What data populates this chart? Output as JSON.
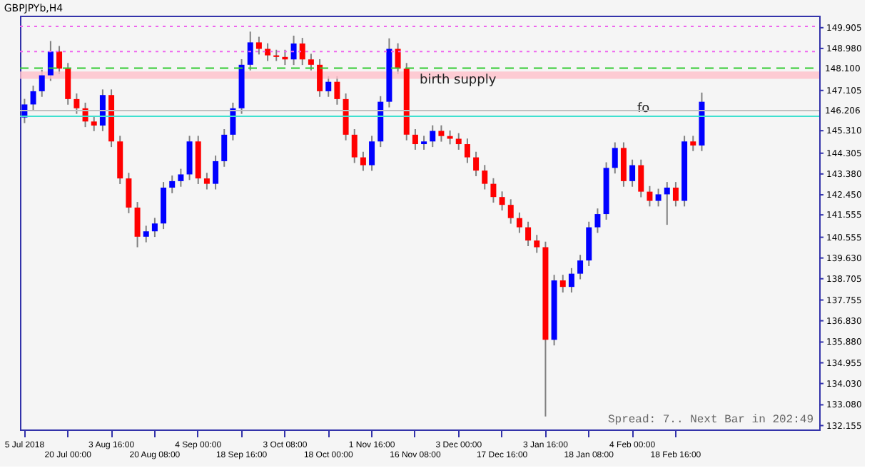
{
  "chart_data": {
    "type": "candlestick",
    "title": "GBPJPYb,H4",
    "categories": [
      "5 Jul 2018",
      null,
      null,
      null,
      null,
      "20 Jul 00:00",
      null,
      null,
      null,
      null,
      "3 Aug 16:00",
      null,
      null,
      null,
      null,
      "20 Aug 08:00",
      null,
      null,
      null,
      null,
      "4 Sep 00:00",
      null,
      null,
      null,
      null,
      "18 Sep 16:00",
      null,
      null,
      null,
      null,
      "3 Oct 08:00",
      null,
      null,
      null,
      null,
      "18 Oct 00:00",
      null,
      null,
      null,
      null,
      "1 Nov 16:00",
      null,
      null,
      null,
      null,
      "16 Nov 08:00",
      null,
      null,
      null,
      null,
      "3 Dec 00:00",
      null,
      null,
      null,
      null,
      "17 Dec 16:00",
      null,
      null,
      null,
      null,
      "3 Jan 16:00",
      null,
      null,
      null,
      null,
      "18 Jan 08:00",
      null,
      null,
      null,
      null,
      "4 Feb 00:00",
      null,
      null,
      null,
      null,
      "18 Feb 16:00",
      null,
      null,
      null,
      null,
      null,
      null,
      null,
      null,
      null,
      null,
      null,
      null,
      null,
      null,
      null,
      null
    ],
    "ohlc": [
      [
        145.9,
        146.73,
        145.65,
        146.48
      ],
      [
        146.48,
        147.32,
        146.23,
        147.07
      ],
      [
        147.07,
        148.03,
        146.82,
        147.78
      ],
      [
        147.78,
        149.31,
        147.53,
        148.84
      ],
      [
        148.84,
        149.09,
        147.83,
        148.08
      ],
      [
        148.08,
        148.33,
        146.47,
        146.72
      ],
      [
        146.72,
        146.97,
        146.06,
        146.31
      ],
      [
        146.31,
        146.56,
        145.47,
        145.72
      ],
      [
        145.72,
        145.97,
        145.29,
        145.54
      ],
      [
        145.54,
        147.15,
        145.29,
        146.9
      ],
      [
        146.9,
        147.15,
        144.58,
        144.83
      ],
      [
        144.83,
        145.08,
        142.93,
        143.18
      ],
      [
        143.18,
        143.43,
        141.63,
        141.88
      ],
      [
        141.88,
        142.13,
        140.11,
        140.58
      ],
      [
        140.58,
        141.07,
        140.33,
        140.82
      ],
      [
        140.82,
        141.42,
        140.57,
        141.17
      ],
      [
        141.17,
        143.02,
        140.92,
        142.77
      ],
      [
        142.77,
        143.31,
        142.52,
        143.06
      ],
      [
        143.06,
        143.61,
        142.81,
        143.36
      ],
      [
        143.36,
        145.08,
        143.11,
        144.83
      ],
      [
        144.83,
        145.08,
        142.93,
        143.18
      ],
      [
        143.18,
        143.43,
        142.69,
        142.94
      ],
      [
        142.94,
        144.2,
        142.69,
        143.95
      ],
      [
        143.95,
        145.38,
        143.7,
        145.13
      ],
      [
        145.13,
        146.56,
        144.88,
        146.31
      ],
      [
        146.31,
        148.5,
        146.06,
        148.25
      ],
      [
        148.25,
        149.73,
        148.0,
        149.25
      ],
      [
        149.25,
        149.5,
        148.71,
        148.96
      ],
      [
        148.96,
        149.21,
        148.42,
        148.67
      ],
      [
        148.67,
        148.92,
        148.42,
        148.6
      ],
      [
        148.6,
        148.92,
        148.24,
        148.49
      ],
      [
        148.49,
        149.55,
        148.24,
        149.2
      ],
      [
        149.2,
        149.45,
        148.24,
        148.49
      ],
      [
        148.49,
        148.74,
        148.0,
        148.25
      ],
      [
        148.25,
        148.5,
        146.82,
        147.07
      ],
      [
        147.07,
        147.74,
        146.82,
        147.49
      ],
      [
        147.49,
        147.74,
        146.47,
        146.72
      ],
      [
        146.72,
        146.97,
        144.88,
        145.13
      ],
      [
        145.13,
        145.38,
        143.87,
        144.12
      ],
      [
        144.12,
        144.37,
        143.52,
        143.77
      ],
      [
        143.77,
        145.08,
        143.52,
        144.83
      ],
      [
        144.83,
        146.85,
        144.58,
        146.6
      ],
      [
        146.6,
        149.43,
        146.35,
        148.96
      ],
      [
        148.96,
        149.21,
        147.83,
        148.08
      ],
      [
        148.08,
        148.33,
        144.88,
        145.13
      ],
      [
        145.13,
        145.38,
        144.46,
        144.71
      ],
      [
        144.71,
        145.08,
        144.46,
        144.83
      ],
      [
        144.83,
        145.55,
        144.58,
        145.3
      ],
      [
        145.3,
        145.55,
        144.82,
        145.07
      ],
      [
        145.07,
        145.32,
        144.7,
        144.95
      ],
      [
        144.95,
        145.2,
        144.46,
        144.71
      ],
      [
        144.71,
        144.96,
        143.87,
        144.12
      ],
      [
        144.12,
        144.37,
        143.28,
        143.53
      ],
      [
        143.53,
        143.78,
        142.69,
        142.94
      ],
      [
        142.94,
        143.19,
        142.1,
        142.35
      ],
      [
        142.35,
        142.6,
        141.75,
        142.0
      ],
      [
        142.0,
        142.25,
        141.16,
        141.41
      ],
      [
        141.41,
        141.66,
        140.75,
        141.0
      ],
      [
        141.0,
        141.25,
        140.16,
        140.41
      ],
      [
        140.41,
        140.66,
        139.86,
        140.11
      ],
      [
        140.11,
        140.36,
        132.56,
        135.98
      ],
      [
        135.98,
        138.88,
        135.73,
        138.63
      ],
      [
        138.63,
        138.88,
        138.09,
        138.34
      ],
      [
        138.34,
        139.18,
        138.09,
        138.93
      ],
      [
        138.93,
        139.77,
        138.68,
        139.52
      ],
      [
        139.52,
        141.25,
        139.27,
        141.0
      ],
      [
        141.0,
        141.84,
        140.75,
        141.59
      ],
      [
        141.59,
        143.9,
        141.34,
        143.65
      ],
      [
        143.65,
        144.79,
        143.4,
        144.54
      ],
      [
        144.54,
        144.79,
        142.81,
        143.06
      ],
      [
        143.06,
        144.02,
        142.81,
        143.77
      ],
      [
        143.77,
        144.02,
        142.34,
        142.59
      ],
      [
        142.59,
        142.84,
        141.93,
        142.18
      ],
      [
        142.18,
        142.72,
        141.93,
        142.47
      ],
      [
        142.47,
        143.02,
        141.11,
        142.77
      ],
      [
        142.77,
        143.02,
        141.93,
        142.18
      ],
      [
        142.18,
        145.08,
        141.93,
        144.83
      ],
      [
        144.83,
        145.08,
        144.4,
        144.65
      ],
      [
        144.65,
        147.01,
        144.4,
        146.6
      ],
      null,
      null,
      null,
      null,
      null,
      null,
      null,
      null,
      null,
      null,
      null,
      null,
      null
    ],
    "colors": [
      "#0000ff",
      "#0000ff",
      "#0000ff",
      "#0000ff",
      "#ff0000",
      "#ff0000",
      "#ff0000",
      "#ff0000",
      "#ff0000",
      "#0000ff",
      "#ff0000",
      "#ff0000",
      "#ff0000",
      "#ff0000",
      "#0000ff",
      "#0000ff",
      "#0000ff",
      "#0000ff",
      "#0000ff",
      "#0000ff",
      "#ff0000",
      "#ff0000",
      "#0000ff",
      "#0000ff",
      "#0000ff",
      "#0000ff",
      "#0000ff",
      "#ff0000",
      "#ff0000",
      "#ff0000",
      "#ff0000",
      "#0000ff",
      "#ff0000",
      "#ff0000",
      "#ff0000",
      "#0000ff",
      "#ff0000",
      "#ff0000",
      "#ff0000",
      "#ff0000",
      "#0000ff",
      "#0000ff",
      "#0000ff",
      "#ff0000",
      "#ff0000",
      "#ff0000",
      "#0000ff",
      "#0000ff",
      "#ff0000",
      "#ff0000",
      "#ff0000",
      "#ff0000",
      "#ff0000",
      "#ff0000",
      "#ff0000",
      "#ff0000",
      "#ff0000",
      "#ff0000",
      "#ff0000",
      "#ff0000",
      "#ff0000",
      "#0000ff",
      "#ff0000",
      "#0000ff",
      "#0000ff",
      "#0000ff",
      "#0000ff",
      "#0000ff",
      "#0000ff",
      "#ff0000",
      "#0000ff",
      "#ff0000",
      "#ff0000",
      "#0000ff",
      "#0000ff",
      "#ff0000",
      "#0000ff",
      "#ff0000",
      "#0000ff",
      null,
      null,
      null,
      null,
      null,
      null,
      null,
      null,
      null,
      null,
      null,
      null,
      null
    ],
    "ylim": [
      131.98,
      150.44
    ],
    "yticks": [
      {
        "value": 149.905,
        "label": "149.905"
      },
      {
        "value": 148.98,
        "label": "148.980"
      },
      {
        "value": 147.105,
        "label": "147.105"
      },
      {
        "value": 145.31,
        "label": "145.310"
      },
      {
        "value": 144.305,
        "label": "144.305"
      },
      {
        "value": 143.38,
        "label": "143.380"
      },
      {
        "value": 142.45,
        "label": "142.450"
      },
      {
        "value": 141.555,
        "label": "141.555"
      },
      {
        "value": 140.555,
        "label": "140.555"
      },
      {
        "value": 139.63,
        "label": "139.630"
      },
      {
        "value": 138.705,
        "label": "138.705"
      },
      {
        "value": 137.755,
        "label": "137.755"
      },
      {
        "value": 136.83,
        "label": "136.830"
      },
      {
        "value": 135.88,
        "label": "135.880"
      },
      {
        "value": 134.955,
        "label": "134.955"
      },
      {
        "value": 134.03,
        "label": "134.030"
      },
      {
        "value": 133.08,
        "label": "133.080"
      },
      {
        "value": 132.155,
        "label": "132.155"
      }
    ],
    "ref_lines": [
      {
        "axis": "y",
        "value": 148.1,
        "label": "148.100",
        "color": "#33cc33",
        "line_style": "dashed"
      },
      {
        "axis": "y",
        "value": 145.95,
        "label": "fo",
        "color": "#40e0d0",
        "line_style": "solid"
      },
      {
        "axis": "y",
        "value": 146.206,
        "label": "146.206",
        "color": "#c0c0c0",
        "line_style": "solid"
      },
      {
        "axis": "y",
        "value": 148.84,
        "color": "#ee66ee",
        "line_style": "dotted"
      },
      {
        "axis": "y",
        "value": 149.96,
        "color": "#ee66ee",
        "line_style": "dotted"
      }
    ],
    "bands": [
      {
        "axis": "y",
        "from": 147.62,
        "to": 147.95,
        "label": "birth   supply",
        "color": "#ffc0cb"
      }
    ],
    "annotations": [
      "Spread: 7.. Next Bar in 202:49"
    ],
    "grid": false
  }
}
